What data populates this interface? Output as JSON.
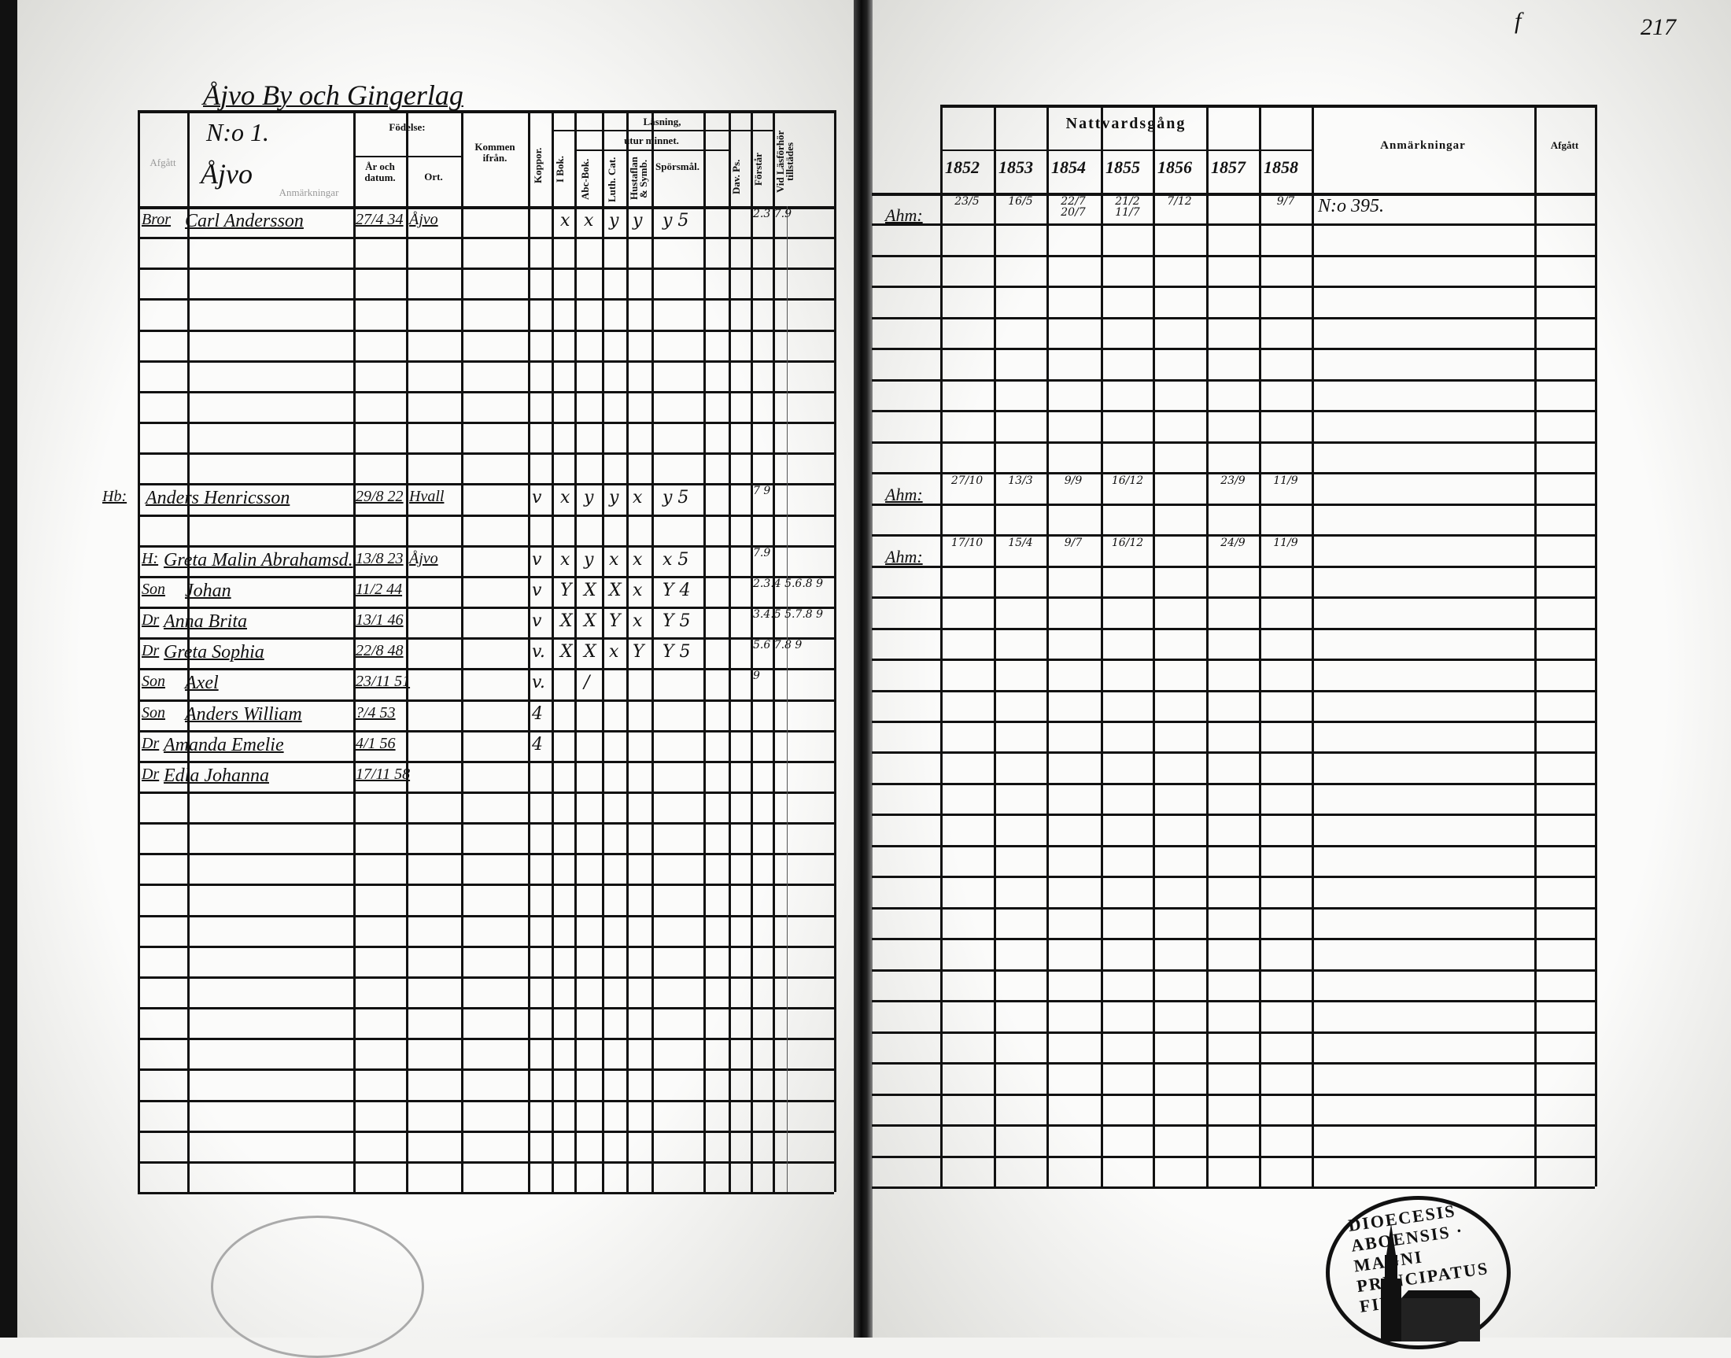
{
  "page_number": "217",
  "corner_mark": "f",
  "left_page": {
    "title": "Åjvo By och Gingerlag",
    "household_no": "N:o 1.",
    "place": "Åjvo",
    "headers": {
      "departed": "Afgått",
      "remarks": "Anmärkningar",
      "birth": "Födelse:",
      "birth_date": "År och datum.",
      "birth_place": "Ort.",
      "came_from": "Kommen ifrån.",
      "smallpox": "Koppor.",
      "reading": "Läsning,",
      "by_heart": "utur minnet.",
      "in_book": "I Bok.",
      "abc_book": "Abc-Bok.",
      "luth_cat": "Luth. Cat.",
      "hustaflan": "Hustaflan & Symb.",
      "questions": "Spörsmål.",
      "dav_ps": "Dav. Ps.",
      "understands": "Förstår",
      "present_exam": "Vid Läsförhör tillstädes"
    },
    "entries": [
      {
        "relation": "Bror",
        "name": "Carl Andersson",
        "birth_date": "27/4 34",
        "birth_place": "Åjvo",
        "smallpox": "",
        "reading": [
          "x",
          "x",
          "y",
          "y",
          "y 5"
        ],
        "exam": "2.3 7.9"
      },
      {
        "relation": "Hb:",
        "name": "Anders Henricsson",
        "birth_date": "29/8 22",
        "birth_place": "Hvall",
        "smallpox": "v",
        "reading": [
          "x",
          "y",
          "y",
          "x",
          "y 5"
        ],
        "exam": "7 9"
      },
      {
        "relation": "H:",
        "name": "Greta Malin Abrahamsd.",
        "birth_date": "13/8 23",
        "birth_place": "Åjvo",
        "smallpox": "v",
        "reading": [
          "x",
          "y",
          "x",
          "x",
          "x 5"
        ],
        "exam": "7.9"
      },
      {
        "relation": "Son",
        "name": "Johan",
        "birth_date": "11/2 44",
        "birth_place": "",
        "smallpox": "v",
        "reading": [
          "Y",
          "X",
          "X",
          "x",
          "Y 4"
        ],
        "exam": "2.3.4 5.6.8 9"
      },
      {
        "relation": "Dr",
        "name": "Anna Brita",
        "birth_date": "13/1 46",
        "birth_place": "",
        "smallpox": "v",
        "reading": [
          "X",
          "X",
          "Y",
          "x",
          "Y 5"
        ],
        "exam": "3.4.5 5.7.8 9"
      },
      {
        "relation": "Dr",
        "name": "Greta Sophia",
        "birth_date": "22/8 48",
        "birth_place": "",
        "smallpox": "v.",
        "reading": [
          "X",
          "X",
          "x",
          "Y",
          "Y 5"
        ],
        "exam": "5.6 7.8 9"
      },
      {
        "relation": "Son",
        "name": "Axel",
        "birth_date": "23/11 51",
        "birth_place": "",
        "smallpox": "v.",
        "reading": [
          "",
          "/",
          "",
          "",
          ""
        ],
        "exam": "9"
      },
      {
        "relation": "Son",
        "name": "Anders William",
        "birth_date": "?/4 53",
        "birth_place": "",
        "smallpox": "4",
        "reading": [
          "",
          "",
          "",
          "",
          ""
        ],
        "exam": ""
      },
      {
        "relation": "Dr",
        "name": "Amanda Emelie",
        "birth_date": "4/1 56",
        "birth_place": "",
        "smallpox": "4",
        "reading": [
          "",
          "",
          "",
          "",
          ""
        ],
        "exam": ""
      },
      {
        "relation": "Dr",
        "name": "Edla Johanna",
        "birth_date": "17/11 58",
        "birth_place": "",
        "smallpox": "",
        "reading": [
          "",
          "",
          "",
          "",
          ""
        ],
        "exam": ""
      }
    ]
  },
  "right_page": {
    "header": "Nattvardsgång",
    "years": [
      "1852",
      "1853",
      "1854",
      "1855",
      "1856",
      "1857",
      "1858"
    ],
    "remarks_header": "Anmärkningar",
    "departed_header": "Afgått",
    "entries": [
      {
        "label": "Ahm:",
        "communions": [
          "23/5",
          "16/5",
          "22/7 20/7",
          "21/2 11/7",
          "7/12",
          "",
          "9/7"
        ],
        "remarks": "N:o 395."
      },
      {
        "label": "Ahm:",
        "communions": [
          "27/10",
          "13/3",
          "9/9",
          "16/12",
          "",
          "23/9",
          "11/9"
        ],
        "remarks": ""
      },
      {
        "label": "Ahm:",
        "communions": [
          "17/10",
          "15/4",
          "9/7",
          "16/12",
          "",
          "24/9",
          "11/9"
        ],
        "remarks": ""
      }
    ]
  },
  "stamp": {
    "text": "DIOECESIS ABOENSIS · MAGNI PRINCIPATUS FINL."
  }
}
